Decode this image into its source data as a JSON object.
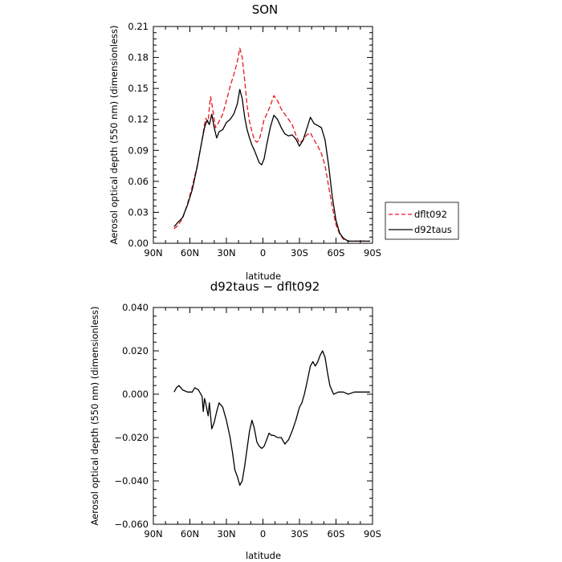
{
  "colors": {
    "dflt092": "#e8161c",
    "d92taus": "#000000"
  },
  "chart_data": [
    {
      "type": "line",
      "title": "SON",
      "xlabel": "latitude",
      "ylabel": "Aerosol optical depth (550 nm) (dimensionless)",
      "xlim": [
        90,
        -90
      ],
      "ylim": [
        0,
        0.21
      ],
      "xticks": [
        90,
        60,
        30,
        0,
        -30,
        -60,
        -90
      ],
      "xtick_labels": [
        "90N",
        "60N",
        "30N",
        "0",
        "30S",
        "60S",
        "90S"
      ],
      "yticks": [
        0,
        0.03,
        0.06,
        0.09,
        0.12,
        0.15,
        0.18,
        0.21
      ],
      "ytick_labels": [
        "0.00",
        "0.03",
        "0.06",
        "0.09",
        "0.12",
        "0.15",
        "0.18",
        "0.21"
      ],
      "legend": {
        "placement": "outside-right",
        "entries": [
          "dflt092",
          "d92taus"
        ]
      },
      "series": [
        {
          "name": "dflt092",
          "style": "dashed",
          "x": [
            73,
            70,
            66,
            62,
            58,
            54,
            50,
            48,
            47,
            45,
            44,
            43,
            41,
            39,
            36,
            33,
            30,
            27,
            24,
            21,
            19,
            17,
            15,
            13,
            11,
            9,
            7,
            5,
            3,
            1,
            -1,
            -3,
            -6,
            -9,
            -12,
            -15,
            -18,
            -21,
            -24,
            -27,
            -30,
            -33,
            -36,
            -39,
            -42,
            -45,
            -48,
            -51,
            -54,
            -57,
            -60,
            -63,
            -66,
            -70,
            -75,
            -80,
            -85,
            -88
          ],
          "y": [
            0.014,
            0.017,
            0.024,
            0.038,
            0.055,
            0.075,
            0.1,
            0.115,
            0.121,
            0.118,
            0.132,
            0.142,
            0.128,
            0.112,
            0.118,
            0.125,
            0.138,
            0.152,
            0.163,
            0.176,
            0.189,
            0.18,
            0.158,
            0.133,
            0.118,
            0.108,
            0.1,
            0.098,
            0.1,
            0.11,
            0.12,
            0.125,
            0.133,
            0.143,
            0.138,
            0.13,
            0.125,
            0.12,
            0.115,
            0.105,
            0.097,
            0.1,
            0.105,
            0.107,
            0.1,
            0.094,
            0.087,
            0.075,
            0.055,
            0.035,
            0.018,
            0.009,
            0.004,
            0.002,
            0.002,
            0.002,
            0.002,
            0.002
          ]
        },
        {
          "name": "d92taus",
          "style": "solid",
          "x": [
            73,
            70,
            66,
            62,
            58,
            54,
            50,
            48,
            46,
            44,
            42,
            40,
            38,
            36,
            33,
            30,
            27,
            24,
            21,
            19,
            17,
            15,
            13,
            11,
            9,
            7,
            5,
            3,
            1,
            -1,
            -3,
            -6,
            -9,
            -12,
            -15,
            -18,
            -21,
            -24,
            -27,
            -30,
            -33,
            -36,
            -39,
            -42,
            -45,
            -48,
            -51,
            -54,
            -57,
            -60,
            -63,
            -66,
            -70,
            -75,
            -80,
            -85,
            -88
          ],
          "y": [
            0.016,
            0.02,
            0.025,
            0.037,
            0.052,
            0.074,
            0.1,
            0.112,
            0.119,
            0.115,
            0.125,
            0.112,
            0.102,
            0.108,
            0.11,
            0.117,
            0.12,
            0.125,
            0.135,
            0.149,
            0.14,
            0.122,
            0.11,
            0.102,
            0.095,
            0.09,
            0.084,
            0.078,
            0.076,
            0.082,
            0.095,
            0.112,
            0.124,
            0.12,
            0.112,
            0.106,
            0.104,
            0.105,
            0.101,
            0.094,
            0.1,
            0.111,
            0.122,
            0.116,
            0.114,
            0.112,
            0.1,
            0.075,
            0.045,
            0.022,
            0.01,
            0.005,
            0.002,
            0.002,
            0.002,
            0.002,
            0.002
          ]
        }
      ]
    },
    {
      "type": "line",
      "title": "d92taus − dflt092",
      "xlabel": "latitude",
      "ylabel": "Aerosol optical depth (550 nm) (dimensionless)",
      "xlim": [
        90,
        -90
      ],
      "ylim": [
        -0.06,
        0.04
      ],
      "xticks": [
        90,
        60,
        30,
        0,
        -30,
        -60,
        -90
      ],
      "xtick_labels": [
        "90N",
        "60N",
        "30N",
        "0",
        "30S",
        "60S",
        "90S"
      ],
      "yticks": [
        -0.06,
        -0.04,
        -0.02,
        0,
        0.02,
        0.04
      ],
      "ytick_labels": [
        "−0.060",
        "−0.040",
        "−0.020",
        "0.000",
        "0.020",
        "0.040"
      ],
      "series": [
        {
          "name": "",
          "style": "solid",
          "x": [
            73,
            71,
            69,
            66,
            62,
            58,
            56,
            53,
            50,
            49,
            48,
            47,
            46,
            45,
            44,
            43,
            42,
            40,
            38,
            36,
            33,
            30,
            27,
            25,
            23,
            21,
            19,
            17,
            15,
            13,
            11,
            9,
            7,
            5,
            3,
            1,
            -1,
            -3,
            -5,
            -7,
            -9,
            -12,
            -15,
            -18,
            -21,
            -24,
            -27,
            -30,
            -32,
            -34,
            -36,
            -39,
            -41,
            -43,
            -45,
            -47,
            -49,
            -51,
            -53,
            -55,
            -58,
            -62,
            -66,
            -70,
            -75,
            -80,
            -85,
            -88
          ],
          "y": [
            0.001,
            0.003,
            0.004,
            0.002,
            0.001,
            0.001,
            0.003,
            0.002,
            -0.001,
            -0.008,
            -0.002,
            -0.004,
            -0.007,
            -0.01,
            -0.004,
            -0.01,
            -0.016,
            -0.013,
            -0.008,
            -0.004,
            -0.006,
            -0.012,
            -0.02,
            -0.027,
            -0.035,
            -0.038,
            -0.042,
            -0.04,
            -0.033,
            -0.025,
            -0.017,
            -0.012,
            -0.016,
            -0.022,
            -0.024,
            -0.025,
            -0.024,
            -0.021,
            -0.018,
            -0.019,
            -0.019,
            -0.02,
            -0.02,
            -0.023,
            -0.021,
            -0.017,
            -0.012,
            -0.006,
            -0.004,
            0.0,
            0.005,
            0.013,
            0.015,
            0.013,
            0.015,
            0.018,
            0.02,
            0.017,
            0.01,
            0.004,
            0.0,
            0.001,
            0.001,
            0.0,
            0.001,
            0.001,
            0.001,
            0.001
          ]
        }
      ]
    }
  ]
}
